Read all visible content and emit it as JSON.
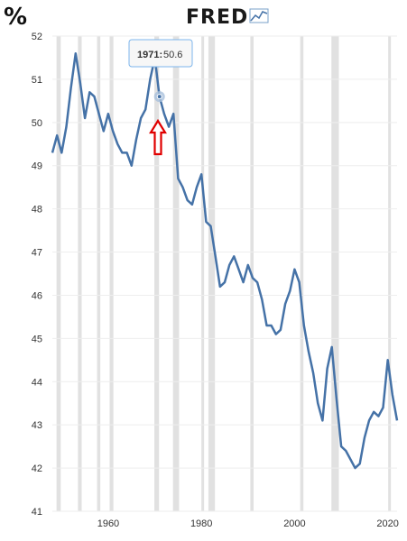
{
  "corner_label": "%",
  "logo": {
    "text": "FRED"
  },
  "tooltip": {
    "label": "1971:",
    "value": "50.6"
  },
  "colors": {
    "line": "#4572a7",
    "recession": "#e1e1e1",
    "grid": "#eeeeee",
    "arrow": "#e00000",
    "tooltip_border": "#7cb5ec"
  },
  "chart_data": {
    "type": "line",
    "title": "",
    "xlabel": "",
    "ylabel": "",
    "xlim": [
      1948,
      2022
    ],
    "ylim": [
      41,
      52
    ],
    "yticks": [
      41,
      42,
      43,
      44,
      45,
      46,
      47,
      48,
      49,
      50,
      51,
      52
    ],
    "xticks": [
      1960,
      1980,
      2000,
      2020
    ],
    "grid": "horizontal",
    "recessions": [
      [
        1948.9,
        1949.8
      ],
      [
        1953.5,
        1954.3
      ],
      [
        1957.6,
        1958.3
      ],
      [
        1960.3,
        1961.1
      ],
      [
        1969.9,
        1970.9
      ],
      [
        1973.9,
        1975.2
      ],
      [
        1980.0,
        1980.5
      ],
      [
        1981.5,
        1982.9
      ],
      [
        1990.5,
        1991.2
      ],
      [
        2001.2,
        2001.9
      ],
      [
        2007.9,
        2009.5
      ],
      [
        2020.1,
        2020.4
      ]
    ],
    "highlight": {
      "x": 1971,
      "y": 50.6
    },
    "series": [
      {
        "x": [
          1948,
          1949,
          1950,
          1951,
          1952,
          1953,
          1954,
          1955,
          1956,
          1957,
          1958,
          1959,
          1960,
          1961,
          1962,
          1963,
          1964,
          1965,
          1966,
          1967,
          1968,
          1969,
          1970,
          1971,
          1972,
          1973,
          1974,
          1975,
          1976,
          1977,
          1978,
          1979,
          1980,
          1981,
          1982,
          1983,
          1984,
          1985,
          1986,
          1987,
          1988,
          1989,
          1990,
          1991,
          1992,
          1993,
          1994,
          1995,
          1996,
          1997,
          1998,
          1999,
          2000,
          2001,
          2002,
          2003,
          2004,
          2005,
          2006,
          2007,
          2008,
          2009,
          2010,
          2011,
          2012,
          2013,
          2014,
          2015,
          2016,
          2017,
          2018,
          2019,
          2020,
          2021,
          2022
        ],
        "values": [
          49.3,
          49.7,
          49.3,
          49.9,
          50.8,
          51.6,
          50.9,
          50.1,
          50.7,
          50.6,
          50.2,
          49.8,
          50.2,
          49.8,
          49.5,
          49.3,
          49.3,
          49.0,
          49.6,
          50.1,
          50.3,
          51.0,
          51.5,
          50.6,
          50.2,
          49.9,
          50.2,
          48.7,
          48.5,
          48.2,
          48.1,
          48.5,
          48.8,
          47.7,
          47.6,
          46.9,
          46.2,
          46.3,
          46.7,
          46.9,
          46.6,
          46.3,
          46.7,
          46.4,
          46.3,
          45.9,
          45.3,
          45.3,
          45.1,
          45.2,
          45.8,
          46.1,
          46.6,
          46.3,
          45.3,
          44.7,
          44.2,
          43.5,
          43.1,
          44.3,
          44.8,
          43.6,
          42.5,
          42.4,
          42.2,
          42.0,
          42.1,
          42.7,
          43.1,
          43.3,
          43.2,
          43.4,
          44.5,
          43.7,
          43.1
        ]
      }
    ]
  }
}
